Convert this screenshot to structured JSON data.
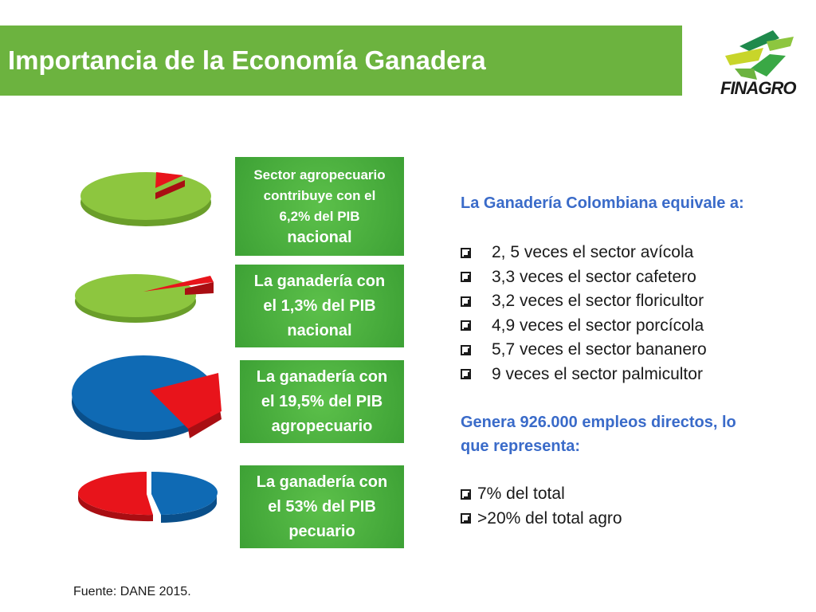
{
  "header": {
    "title": "Importancia de la Economía Ganadera",
    "logo_text": "FINAGRO"
  },
  "boxes": [
    {
      "lines": [
        "Sector agropecuario",
        "contribuye con el",
        "6,2% del PIB",
        "nacional"
      ]
    },
    {
      "lines": [
        "La ganadería con",
        "el 1,3% del PIB",
        "nacional"
      ]
    },
    {
      "lines": [
        "La ganadería con",
        "el 19,5% del PIB",
        "agropecuario"
      ]
    },
    {
      "lines": [
        "La ganadería con",
        "el 53% del PIB",
        "pecuario"
      ]
    }
  ],
  "right": {
    "heading1": "La Ganadería Colombiana equivale a:",
    "list1": [
      "2, 5 veces el sector avícola",
      "3,3 veces el sector cafetero",
      "3,2 veces el sector floricultor",
      "4,9 veces el sector porcícola",
      "5,7 veces el sector bananero",
      "9 veces el sector palmicultor"
    ],
    "heading2_line1": "Genera 926.000 empleos directos, lo",
    "heading2_line2": "que representa:",
    "list2": [
      "7% del total",
      ">20% del total agro"
    ]
  },
  "source": "Fuente: DANE  2015.",
  "pies": [
    {
      "highlight_pct": 6.2,
      "base_color": "#8dc63f",
      "highlight_color": "#e8141b"
    },
    {
      "highlight_pct": 1.3,
      "base_color": "#8dc63f",
      "highlight_color": "#e8141b"
    },
    {
      "highlight_pct": 19.5,
      "base_color": "#0f6ab4",
      "highlight_color": "#e8141b"
    },
    {
      "highlight_pct": 53,
      "base_color": "#0f6ab4",
      "highlight_color": "#e8141b"
    }
  ],
  "colors": {
    "title_bar": "#6cb33f",
    "box_green": "#3da135",
    "heading_blue": "#3a6bc9"
  }
}
